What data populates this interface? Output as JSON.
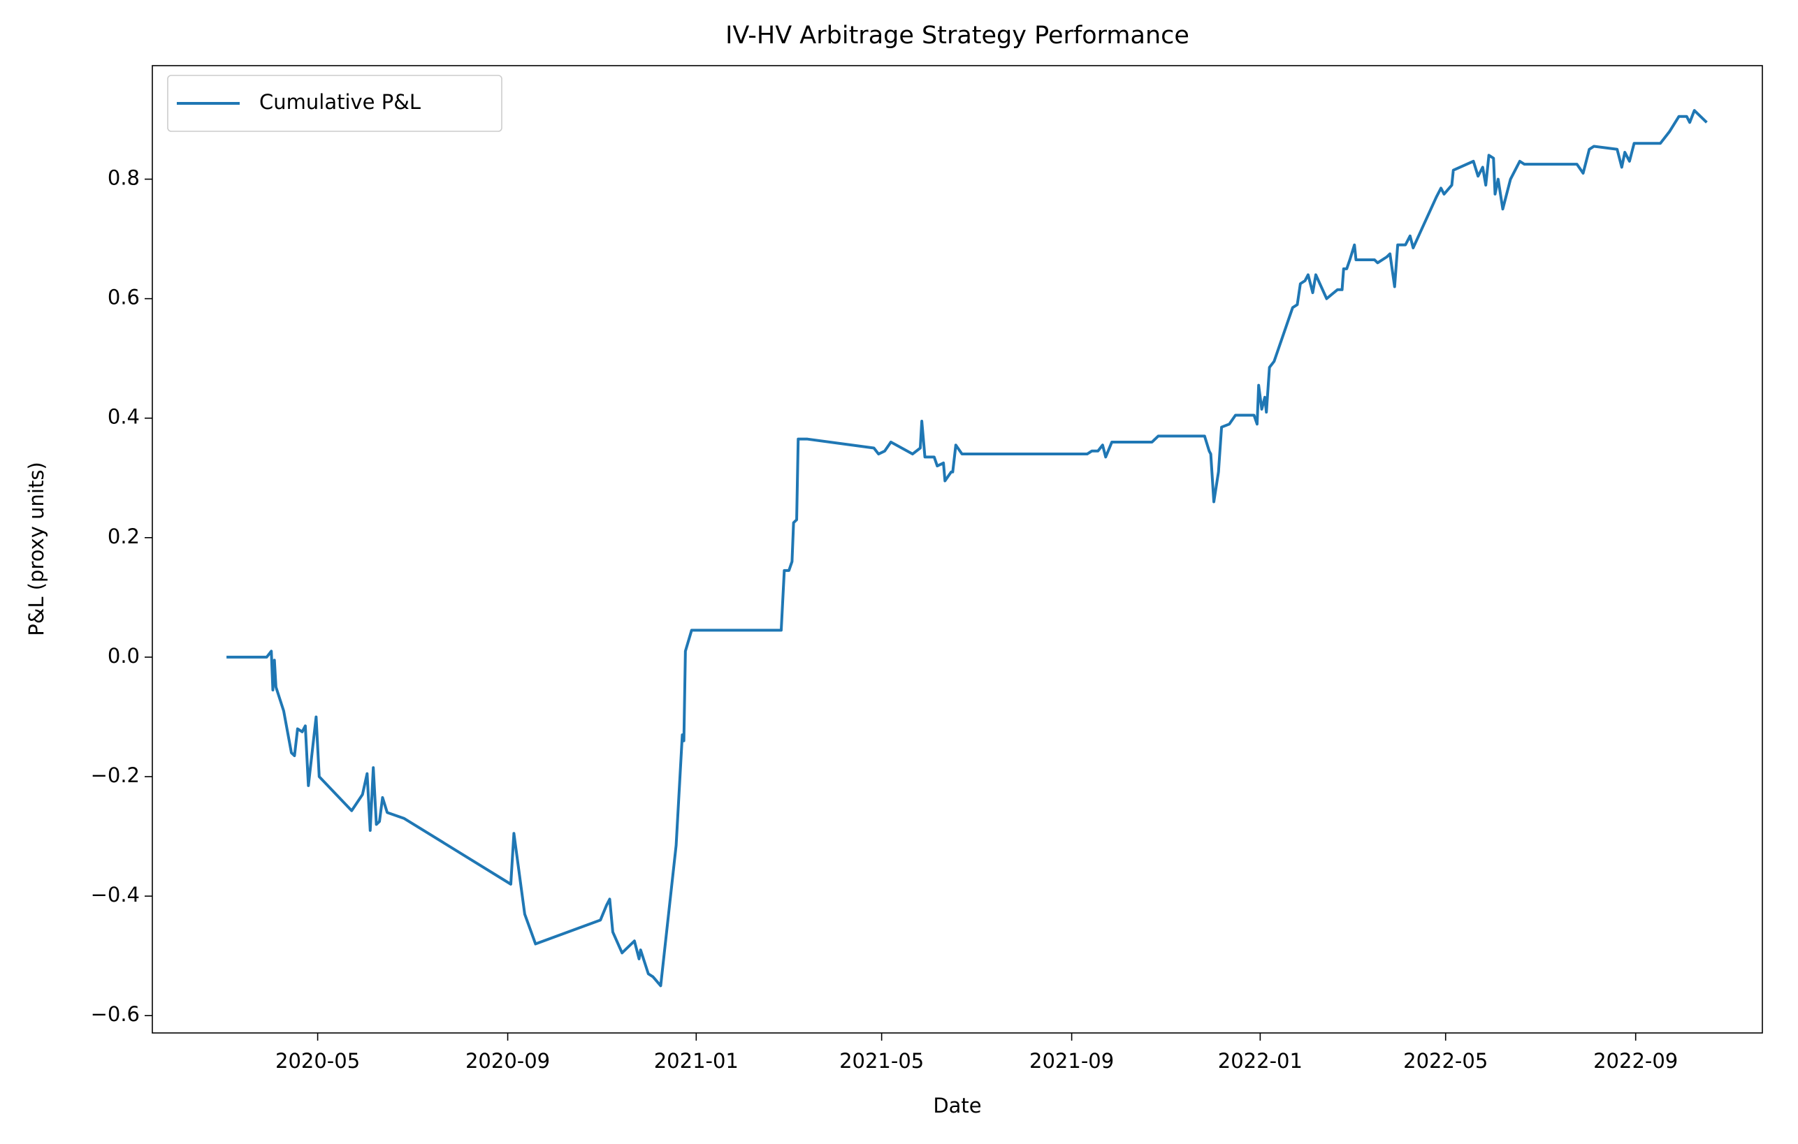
{
  "chart_data": {
    "type": "line",
    "title": "IV-HV Arbitrage Strategy Performance",
    "xlabel": "Date",
    "ylabel": "P&L (proxy units)",
    "x": [
      "2020-03-03",
      "2020-03-29",
      "2020-04-01",
      "2020-04-02",
      "2020-04-03",
      "2020-04-04",
      "2020-04-09",
      "2020-04-14",
      "2020-04-16",
      "2020-04-18",
      "2020-04-21",
      "2020-04-23",
      "2020-04-25",
      "2020-04-30",
      "2020-05-02",
      "2020-05-23",
      "2020-05-30",
      "2020-06-02",
      "2020-06-04",
      "2020-06-06",
      "2020-06-08",
      "2020-06-10",
      "2020-06-12",
      "2020-06-15",
      "2020-06-26",
      "2020-09-03",
      "2020-09-05",
      "2020-09-12",
      "2020-09-19",
      "2020-10-31",
      "2020-11-04",
      "2020-11-06",
      "2020-11-08",
      "2020-11-14",
      "2020-11-22",
      "2020-11-25",
      "2020-11-26",
      "2020-12-01",
      "2020-12-04",
      "2020-12-09",
      "2020-12-19",
      "2020-12-23",
      "2020-12-24",
      "2020-12-25",
      "2020-12-29",
      "2021-02-25",
      "2021-02-27",
      "2021-03-02",
      "2021-03-04",
      "2021-03-05",
      "2021-03-07",
      "2021-03-08",
      "2021-03-14",
      "2021-04-26",
      "2021-04-29",
      "2021-05-03",
      "2021-05-07",
      "2021-05-21",
      "2021-05-26",
      "2021-05-27",
      "2021-05-29",
      "2021-06-04",
      "2021-06-06",
      "2021-06-10",
      "2021-06-11",
      "2021-06-15",
      "2021-06-16",
      "2021-06-18",
      "2021-06-22",
      "2021-09-11",
      "2021-09-14",
      "2021-09-18",
      "2021-09-21",
      "2021-09-23",
      "2021-09-27",
      "2021-10-23",
      "2021-10-27",
      "2021-11-26",
      "2021-11-29",
      "2021-11-30",
      "2021-12-02",
      "2021-12-05",
      "2021-12-07",
      "2021-12-12",
      "2021-12-16",
      "2021-12-28",
      "2021-12-30",
      "2021-12-31",
      "2022-01-02",
      "2022-01-04",
      "2022-01-05",
      "2022-01-07",
      "2022-01-10",
      "2022-01-22",
      "2022-01-25",
      "2022-01-27",
      "2022-01-30",
      "2022-02-01",
      "2022-02-04",
      "2022-02-06",
      "2022-02-13",
      "2022-02-20",
      "2022-02-23",
      "2022-02-24",
      "2022-02-26",
      "2022-02-28",
      "2022-03-03",
      "2022-03-04",
      "2022-03-16",
      "2022-03-18",
      "2022-03-24",
      "2022-03-26",
      "2022-03-29",
      "2022-03-31",
      "2022-04-05",
      "2022-04-08",
      "2022-04-10",
      "2022-04-25",
      "2022-04-28",
      "2022-04-30",
      "2022-05-05",
      "2022-05-06",
      "2022-05-19",
      "2022-05-22",
      "2022-05-25",
      "2022-05-27",
      "2022-05-29",
      "2022-06-01",
      "2022-06-02",
      "2022-06-04",
      "2022-06-07",
      "2022-06-12",
      "2022-06-15",
      "2022-06-18",
      "2022-06-21",
      "2022-06-23",
      "2022-07-25",
      "2022-07-29",
      "2022-08-02",
      "2022-08-05",
      "2022-08-20",
      "2022-08-23",
      "2022-08-25",
      "2022-08-28",
      "2022-08-31",
      "2022-09-03",
      "2022-09-17",
      "2022-09-23",
      "2022-09-29",
      "2022-10-04",
      "2022-10-06",
      "2022-10-09",
      "2022-10-17"
    ],
    "series": [
      {
        "name": "Cumulative P&L",
        "color": "#1f77b4",
        "values": [
          0,
          0,
          0.01,
          -0.055,
          -0.005,
          -0.05,
          -0.09,
          -0.16,
          -0.165,
          -0.12,
          -0.125,
          -0.115,
          -0.215,
          -0.1,
          -0.2,
          -0.257,
          -0.23,
          -0.195,
          -0.29,
          -0.185,
          -0.28,
          -0.275,
          -0.235,
          -0.26,
          -0.27,
          -0.38,
          -0.295,
          -0.43,
          -0.48,
          -0.44,
          -0.415,
          -0.405,
          -0.46,
          -0.495,
          -0.475,
          -0.505,
          -0.49,
          -0.53,
          -0.535,
          -0.55,
          -0.315,
          -0.13,
          -0.14,
          0.01,
          0.045,
          0.045,
          0.145,
          0.145,
          0.16,
          0.225,
          0.23,
          0.365,
          0.365,
          0.35,
          0.34,
          0.345,
          0.36,
          0.34,
          0.35,
          0.395,
          0.335,
          0.335,
          0.32,
          0.325,
          0.295,
          0.31,
          0.31,
          0.355,
          0.34,
          0.34,
          0.345,
          0.345,
          0.355,
          0.335,
          0.36,
          0.36,
          0.37,
          0.37,
          0.345,
          0.34,
          0.26,
          0.31,
          0.385,
          0.39,
          0.405,
          0.405,
          0.39,
          0.455,
          0.415,
          0.435,
          0.41,
          0.485,
          0.495,
          0.585,
          0.59,
          0.625,
          0.63,
          0.64,
          0.61,
          0.64,
          0.6,
          0.615,
          0.615,
          0.65,
          0.65,
          0.665,
          0.69,
          0.665,
          0.665,
          0.66,
          0.67,
          0.675,
          0.62,
          0.69,
          0.69,
          0.705,
          0.685,
          0.77,
          0.785,
          0.775,
          0.79,
          0.815,
          0.83,
          0.805,
          0.82,
          0.79,
          0.84,
          0.835,
          0.775,
          0.8,
          0.75,
          0.8,
          0.815,
          0.83,
          0.825,
          0.825,
          0.825,
          0.81,
          0.85,
          0.855,
          0.85,
          0.82,
          0.845,
          0.83,
          0.86,
          0.86,
          0.86,
          0.88,
          0.905,
          0.905,
          0.895,
          0.915,
          0.895
        ]
      }
    ],
    "xlim": [
      "2020-01-15",
      "2022-11-22"
    ],
    "xticks": [
      "2020-05",
      "2020-09",
      "2021-01",
      "2021-05",
      "2021-09",
      "2022-01",
      "2022-05",
      "2022-09"
    ],
    "ylim": [
      -0.629,
      0.99
    ],
    "yticks": [
      {
        "value": -0.6,
        "label": "−0.6"
      },
      {
        "value": -0.4,
        "label": "−0.4"
      },
      {
        "value": -0.2,
        "label": "−0.2"
      },
      {
        "value": 0,
        "label": "0.0"
      },
      0.2,
      0.4,
      0.6,
      0.8
    ],
    "legend": "upper left",
    "grid": false
  }
}
